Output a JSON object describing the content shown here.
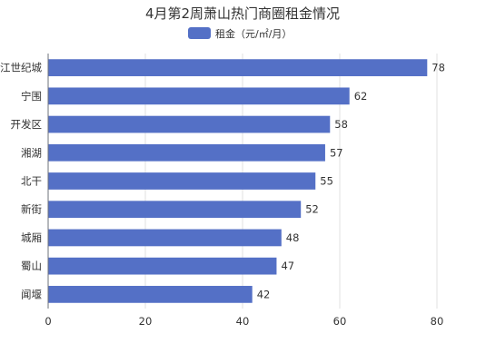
{
  "chart_data": {
    "type": "bar",
    "orientation": "horizontal",
    "title": "4月第2周萧山热门商圈租金情况",
    "categories": [
      "江世纪城",
      "宁围",
      "开发区",
      "湘湖",
      "北干",
      "新街",
      "城厢",
      "蜀山",
      "闻堰"
    ],
    "series": [
      {
        "name": "租金（元/㎡/月）",
        "values": [
          78,
          62,
          58,
          57,
          55,
          52,
          48,
          47,
          42
        ],
        "color": "#5470c6"
      }
    ],
    "xlim": [
      0,
      80
    ],
    "x_ticks": [
      0,
      20,
      40,
      60,
      80
    ],
    "grid": true,
    "legend_position": "top-center",
    "data_labels": true
  }
}
